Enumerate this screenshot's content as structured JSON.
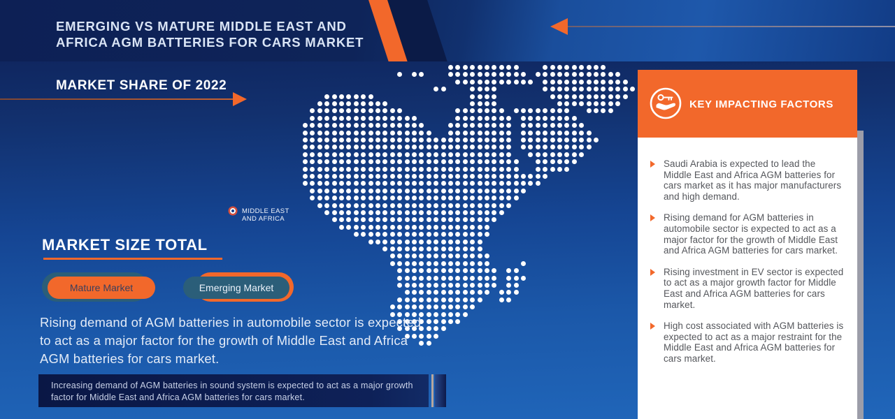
{
  "banner": {
    "title_line1": "EMERGING VS MATURE MIDDLE EAST AND",
    "title_line2": "AFRICA AGM BATTERIES FOR CARS MARKET",
    "arrow_icon": "arrow-left-icon"
  },
  "market_share": {
    "title": "MARKET SHARE OF 2022",
    "arrow_icon": "arrow-right-icon"
  },
  "map": {
    "name": "dotted-map-middle-east-africa",
    "marker_icon": "target-marker-icon",
    "label_line1": "MIDDLE EAST",
    "label_line2": "AND AFRICA"
  },
  "market_size": {
    "title": "MARKET SIZE TOTAL",
    "mature_label": "Mature Market",
    "emerging_label": "Emerging Market",
    "description_lines": [
      "Rising demand of AGM batteries in automobile sector is expected",
      "to act as a major factor for the growth of Middle East and Africa",
      "AGM batteries for cars market."
    ]
  },
  "footnote": {
    "lines": [
      "Increasing demand of AGM batteries in sound system is expected to act as a major growth",
      "factor for Middle East and Africa AGM batteries for cars market."
    ]
  },
  "key_factors": {
    "title": "KEY IMPACTING FACTORS",
    "icon": "hand-holding-key-icon",
    "bullet_icon": "triangle-bullet-icon",
    "bullets": [
      "Saudi Arabia is expected to lead the Middle East and Africa AGM batteries for cars market as it has major manufacturers and high demand.",
      "Rising demand for AGM batteries in automobile sector is expected to act as a major factor for the growth of Middle East and Africa AGM batteries for cars market.",
      "Rising investment in EV sector is expected to act as a major growth factor for Middle East and Africa AGM batteries for cars market.",
      "High cost associated with AGM batteries is expected to act as a major restraint for the Middle East and Africa AGM batteries for cars market."
    ]
  },
  "colors": {
    "accent_orange": "#F2682B",
    "deep_navy": "#0D1A4A",
    "teal_blue": "#2B5E79",
    "panel_text": "#54565B",
    "marker_red": "#D8503C",
    "dot_white": "#FFFFFF"
  }
}
